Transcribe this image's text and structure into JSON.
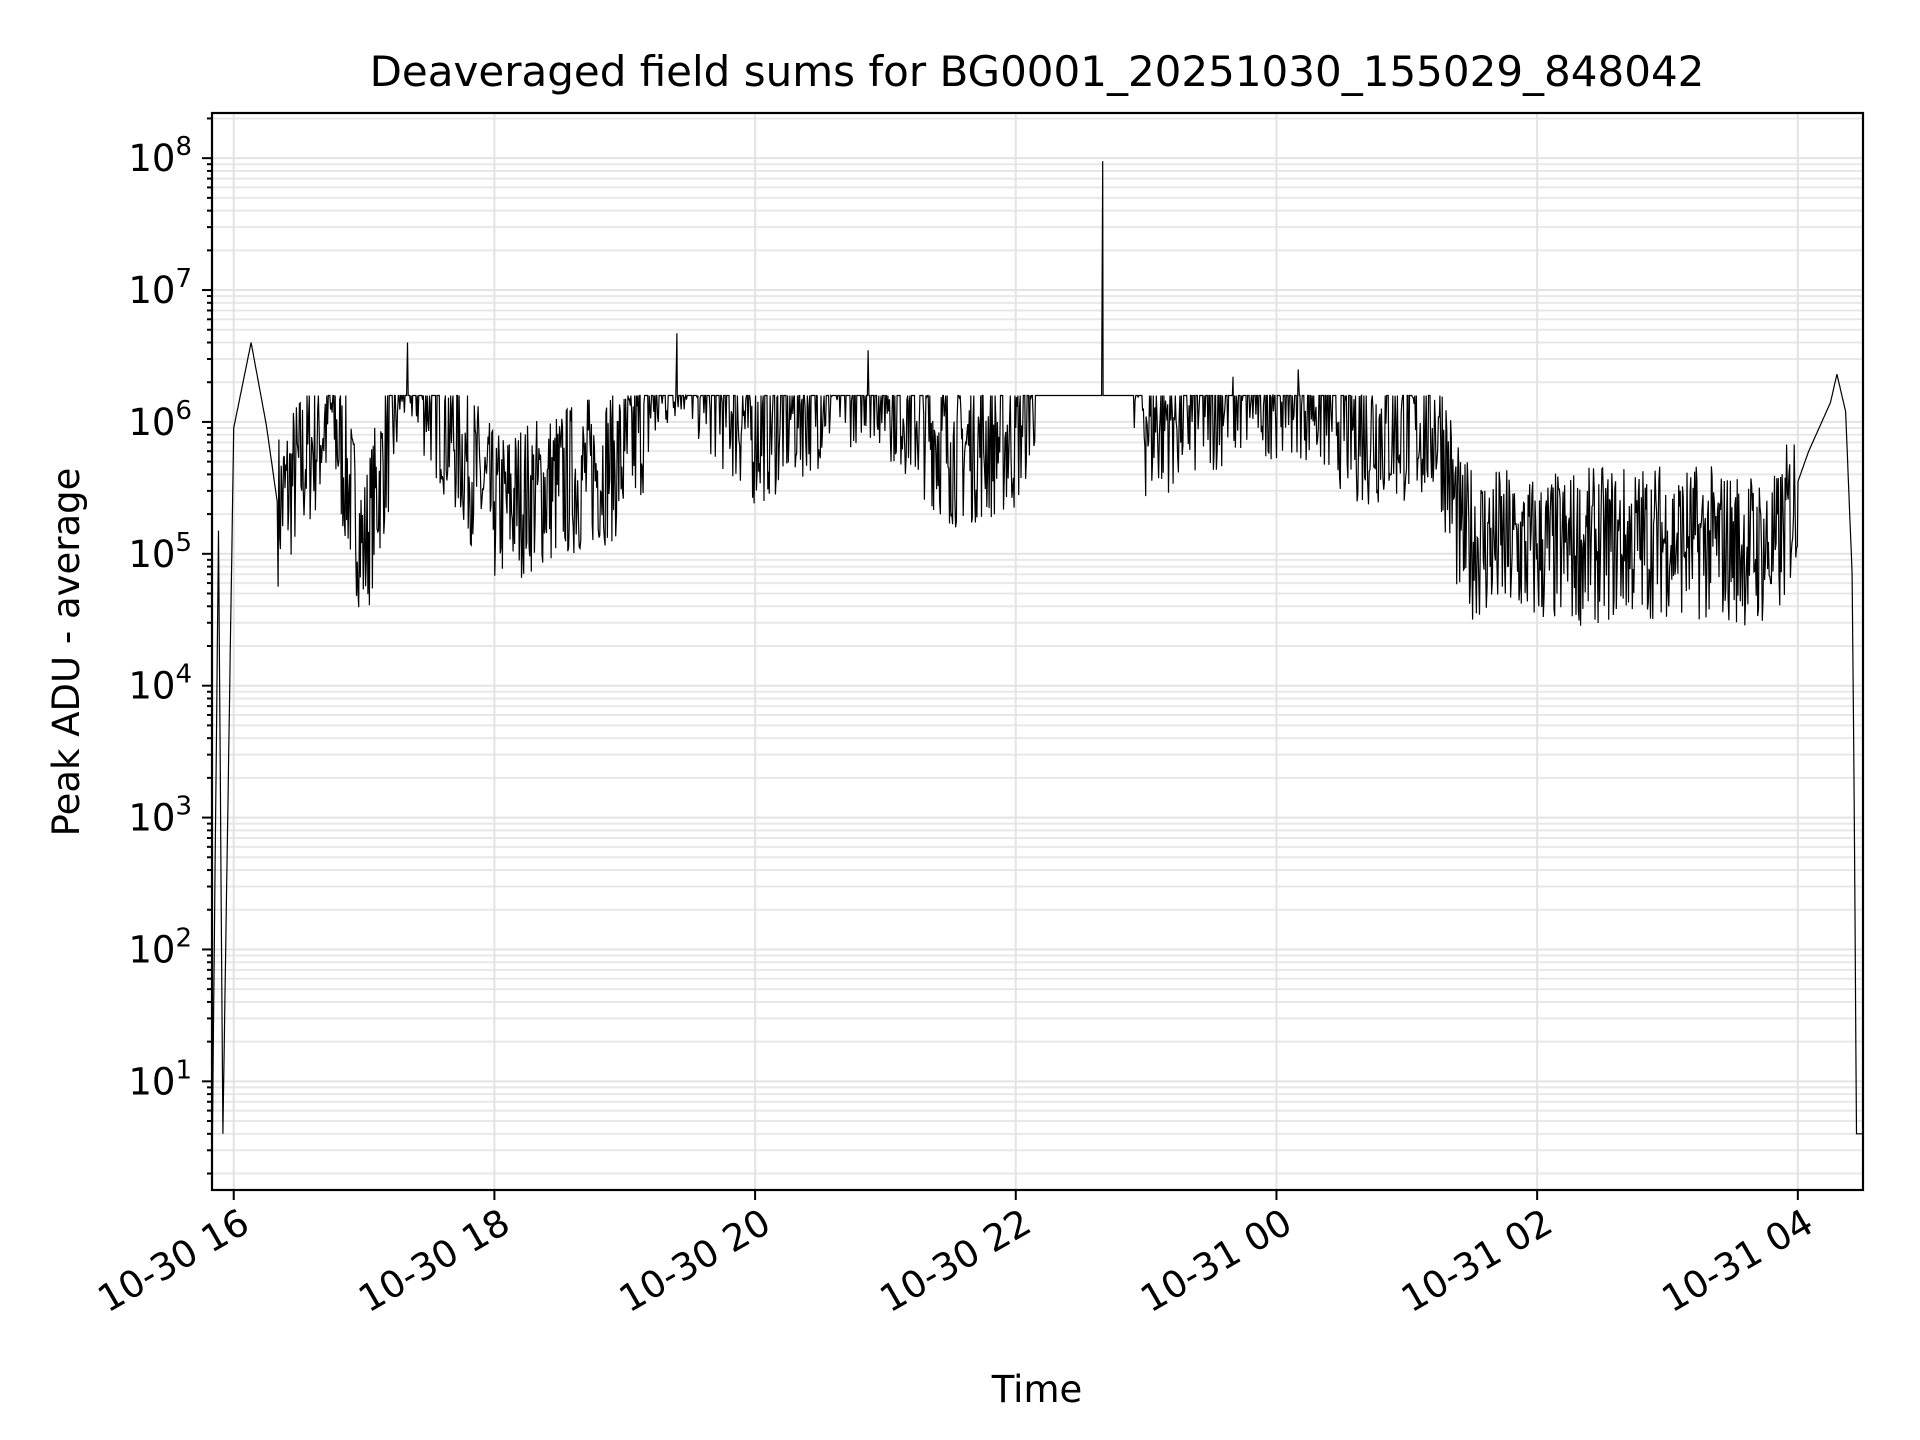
{
  "chart_data": {
    "type": "line",
    "title": "Deaveraged field sums for BG0001_20251030_155029_848042",
    "xlabel": "Time",
    "ylabel": "Peak ADU - average",
    "x_ticks": [
      "10-30 16",
      "10-30 18",
      "10-30 20",
      "10-30 22",
      "10-31 00",
      "10-31 02",
      "10-31 04"
    ],
    "y_scale": "log",
    "y_ticks": [
      {
        "base": "10",
        "exp": "1"
      },
      {
        "base": "10",
        "exp": "2"
      },
      {
        "base": "10",
        "exp": "3"
      },
      {
        "base": "10",
        "exp": "4"
      },
      {
        "base": "10",
        "exp": "5"
      },
      {
        "base": "10",
        "exp": "6"
      },
      {
        "base": "10",
        "exp": "7"
      },
      {
        "base": "10",
        "exp": "8"
      }
    ],
    "xlim": [
      "2025-10-30 15:50",
      "2025-10-31 04:30"
    ],
    "ylim": [
      1.5,
      220000000
    ],
    "grid": true,
    "series": [
      {
        "points": [
          [
            "2025-10-30 15:50",
            2
          ],
          [
            "2025-10-30 15:53",
            150000.0
          ],
          [
            "2025-10-30 15:55",
            4
          ],
          [
            "2025-10-30 16:00",
            900000.0
          ],
          [
            "2025-10-30 16:08",
            4000000.0
          ],
          [
            "2025-10-30 16:15",
            950000.0
          ],
          [
            "2025-10-30 16:20",
            250000.0
          ],
          [
            "2025-10-30 16:45",
            1400000.0
          ],
          [
            "2025-10-30 17:00",
            120000.0
          ],
          [
            "2025-10-30 17:20",
            4000000.0
          ],
          [
            "2025-10-30 18:00",
            250000.0
          ],
          [
            "2025-10-30 19:00",
            600000.0
          ],
          [
            "2025-10-30 19:24",
            4700000.0
          ],
          [
            "2025-10-30 20:00",
            1000000.0
          ],
          [
            "2025-10-30 20:52",
            3500000.0
          ],
          [
            "2025-10-30 21:30",
            700000.0
          ],
          [
            "2025-10-30 22:00",
            900000.0
          ],
          [
            "2025-10-30 22:40",
            95000000.0
          ],
          [
            "2025-10-30 23:00",
            1100000.0
          ],
          [
            "2025-10-30 23:40",
            2200000.0
          ],
          [
            "2025-10-31 00:10",
            2500000.0
          ],
          [
            "2025-10-31 00:40",
            1000000.0
          ],
          [
            "2025-10-31 01:15",
            1100000.0
          ],
          [
            "2025-10-31 01:25",
            150000.0
          ],
          [
            "2025-10-31 02:00",
            120000.0
          ],
          [
            "2025-10-31 03:00",
            150000.0
          ],
          [
            "2025-10-31 03:50",
            120000.0
          ],
          [
            "2025-10-31 04:05",
            600000.0
          ],
          [
            "2025-10-31 04:15",
            1400000.0
          ],
          [
            "2025-10-31 04:18",
            2300000.0
          ],
          [
            "2025-10-31 04:22",
            1200000.0
          ],
          [
            "2025-10-31 04:25",
            70000.0
          ],
          [
            "2025-10-31 04:26",
            1000
          ],
          [
            "2025-10-31 04:27",
            4
          ],
          [
            "2025-10-31 04:30",
            4
          ]
        ]
      }
    ]
  }
}
